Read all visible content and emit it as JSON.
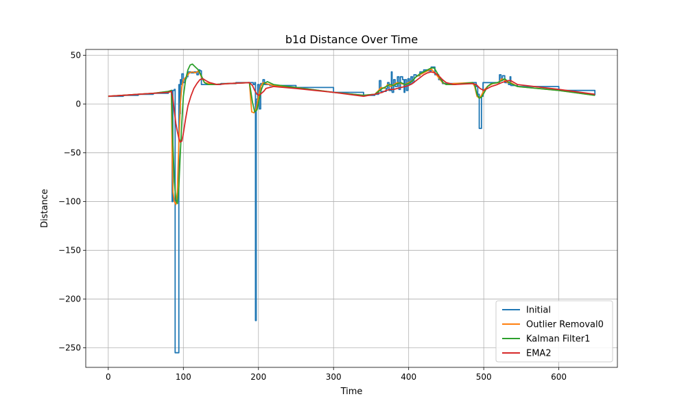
{
  "chart_data": {
    "type": "line",
    "title": "b1d Distance Over Time",
    "xlabel": "Time",
    "ylabel": "Distance",
    "xlim": [
      -30,
      678
    ],
    "ylim": [
      -270,
      56
    ],
    "xticks": [
      0,
      100,
      200,
      300,
      400,
      500,
      600
    ],
    "yticks": [
      50,
      0,
      -50,
      -100,
      -150,
      -200,
      -250
    ],
    "ytick_labels": [
      "50",
      "0",
      "−50",
      "−100",
      "−150",
      "−200",
      "−250"
    ],
    "grid": true,
    "legend_position": "bottom-right",
    "series": [
      {
        "name": "Initial",
        "color": "#1f77b4",
        "step": true,
        "points": [
          [
            0,
            8
          ],
          [
            20,
            9
          ],
          [
            40,
            10
          ],
          [
            60,
            11
          ],
          [
            80,
            13
          ],
          [
            84,
            14
          ],
          [
            85,
            -100
          ],
          [
            86,
            14
          ],
          [
            88,
            15
          ],
          [
            89,
            -255
          ],
          [
            93,
            -255
          ],
          [
            94,
            20
          ],
          [
            95,
            -10
          ],
          [
            96,
            25
          ],
          [
            97,
            20
          ],
          [
            98,
            31
          ],
          [
            100,
            22
          ],
          [
            102,
            26
          ],
          [
            104,
            28
          ],
          [
            106,
            33
          ],
          [
            110,
            32
          ],
          [
            114,
            33
          ],
          [
            118,
            30
          ],
          [
            120,
            35
          ],
          [
            122,
            34
          ],
          [
            124,
            20
          ],
          [
            130,
            20
          ],
          [
            150,
            21
          ],
          [
            170,
            22
          ],
          [
            188,
            22
          ],
          [
            190,
            22
          ],
          [
            193,
            20
          ],
          [
            195,
            22
          ],
          [
            196,
            -222
          ],
          [
            197,
            5
          ],
          [
            199,
            20
          ],
          [
            201,
            -5
          ],
          [
            203,
            21
          ],
          [
            206,
            25
          ],
          [
            208,
            20
          ],
          [
            215,
            19
          ],
          [
            250,
            17
          ],
          [
            300,
            12
          ],
          [
            340,
            9
          ],
          [
            355,
            10
          ],
          [
            360,
            14
          ],
          [
            361,
            24
          ],
          [
            363,
            13
          ],
          [
            370,
            16
          ],
          [
            372,
            22
          ],
          [
            374,
            14
          ],
          [
            377,
            33
          ],
          [
            378,
            12
          ],
          [
            380,
            25
          ],
          [
            382,
            18
          ],
          [
            385,
            28
          ],
          [
            387,
            15
          ],
          [
            389,
            28
          ],
          [
            392,
            25
          ],
          [
            394,
            12
          ],
          [
            395,
            25
          ],
          [
            397,
            14
          ],
          [
            399,
            26
          ],
          [
            401,
            20
          ],
          [
            403,
            28
          ],
          [
            405,
            22
          ],
          [
            407,
            30
          ],
          [
            410,
            29
          ],
          [
            415,
            33
          ],
          [
            420,
            35
          ],
          [
            425,
            34
          ],
          [
            430,
            38
          ],
          [
            435,
            30
          ],
          [
            440,
            25
          ],
          [
            445,
            21
          ],
          [
            460,
            21
          ],
          [
            485,
            22
          ],
          [
            490,
            18
          ],
          [
            492,
            10
          ],
          [
            494,
            -25
          ],
          [
            496,
            -25
          ],
          [
            497,
            8
          ],
          [
            499,
            22
          ],
          [
            505,
            22
          ],
          [
            512,
            22
          ],
          [
            520,
            22
          ],
          [
            521,
            30
          ],
          [
            523,
            24
          ],
          [
            525,
            29
          ],
          [
            528,
            22
          ],
          [
            533,
            20
          ],
          [
            535,
            28
          ],
          [
            536,
            19
          ],
          [
            545,
            18
          ],
          [
            600,
            14
          ],
          [
            648,
            9
          ]
        ]
      },
      {
        "name": "Outlier Removal0",
        "color": "#ff7f0e",
        "step": false,
        "points": [
          [
            0,
            8
          ],
          [
            20,
            9
          ],
          [
            40,
            10
          ],
          [
            60,
            11
          ],
          [
            80,
            13
          ],
          [
            84,
            14
          ],
          [
            85,
            -50
          ],
          [
            86,
            -90
          ],
          [
            88,
            -100
          ],
          [
            90,
            -103
          ],
          [
            92,
            -90
          ],
          [
            94,
            -40
          ],
          [
            96,
            0
          ],
          [
            98,
            18
          ],
          [
            100,
            25
          ],
          [
            104,
            28
          ],
          [
            108,
            32
          ],
          [
            112,
            33
          ],
          [
            116,
            32
          ],
          [
            120,
            34
          ],
          [
            124,
            28
          ],
          [
            128,
            22
          ],
          [
            140,
            20
          ],
          [
            160,
            21
          ],
          [
            188,
            22
          ],
          [
            191,
            -8
          ],
          [
            194,
            -9
          ],
          [
            197,
            -5
          ],
          [
            200,
            8
          ],
          [
            203,
            18
          ],
          [
            206,
            22
          ],
          [
            210,
            21
          ],
          [
            220,
            19
          ],
          [
            250,
            17
          ],
          [
            300,
            12
          ],
          [
            340,
            9
          ],
          [
            355,
            10
          ],
          [
            360,
            14
          ],
          [
            363,
            17
          ],
          [
            368,
            16
          ],
          [
            372,
            20
          ],
          [
            376,
            18
          ],
          [
            380,
            20
          ],
          [
            385,
            22
          ],
          [
            390,
            21
          ],
          [
            395,
            20
          ],
          [
            400,
            22
          ],
          [
            405,
            24
          ],
          [
            410,
            28
          ],
          [
            415,
            30
          ],
          [
            420,
            32
          ],
          [
            425,
            34
          ],
          [
            430,
            36
          ],
          [
            435,
            32
          ],
          [
            440,
            27
          ],
          [
            445,
            22
          ],
          [
            450,
            20
          ],
          [
            460,
            21
          ],
          [
            485,
            22
          ],
          [
            488,
            18
          ],
          [
            491,
            8
          ],
          [
            494,
            6
          ],
          [
            497,
            9
          ],
          [
            500,
            14
          ],
          [
            505,
            18
          ],
          [
            512,
            21
          ],
          [
            520,
            22
          ],
          [
            524,
            26
          ],
          [
            528,
            24
          ],
          [
            532,
            22
          ],
          [
            536,
            22
          ],
          [
            545,
            18
          ],
          [
            600,
            14
          ],
          [
            648,
            9
          ]
        ]
      },
      {
        "name": "Kalman Filter1",
        "color": "#2ca02c",
        "step": false,
        "points": [
          [
            0,
            8
          ],
          [
            20,
            9
          ],
          [
            40,
            10
          ],
          [
            60,
            11
          ],
          [
            80,
            13
          ],
          [
            84,
            14
          ],
          [
            86,
            -40
          ],
          [
            88,
            -80
          ],
          [
            90,
            -98
          ],
          [
            92,
            -102
          ],
          [
            94,
            -85
          ],
          [
            96,
            -50
          ],
          [
            98,
            -18
          ],
          [
            100,
            8
          ],
          [
            103,
            25
          ],
          [
            106,
            35
          ],
          [
            109,
            40
          ],
          [
            112,
            41
          ],
          [
            116,
            38
          ],
          [
            120,
            35
          ],
          [
            124,
            29
          ],
          [
            128,
            22
          ],
          [
            133,
            20
          ],
          [
            140,
            20
          ],
          [
            160,
            21
          ],
          [
            188,
            22
          ],
          [
            192,
            2
          ],
          [
            195,
            -8
          ],
          [
            198,
            -6
          ],
          [
            201,
            5
          ],
          [
            204,
            15
          ],
          [
            207,
            21
          ],
          [
            212,
            23
          ],
          [
            220,
            20
          ],
          [
            250,
            17
          ],
          [
            300,
            12
          ],
          [
            340,
            9
          ],
          [
            355,
            10
          ],
          [
            360,
            13
          ],
          [
            365,
            16
          ],
          [
            370,
            18
          ],
          [
            375,
            20
          ],
          [
            380,
            19
          ],
          [
            385,
            21
          ],
          [
            390,
            22
          ],
          [
            395,
            20
          ],
          [
            400,
            21
          ],
          [
            405,
            24
          ],
          [
            410,
            28
          ],
          [
            415,
            31
          ],
          [
            420,
            33
          ],
          [
            425,
            35
          ],
          [
            430,
            37
          ],
          [
            434,
            37
          ],
          [
            438,
            32
          ],
          [
            442,
            26
          ],
          [
            446,
            22
          ],
          [
            450,
            20
          ],
          [
            460,
            20
          ],
          [
            485,
            22
          ],
          [
            488,
            20
          ],
          [
            491,
            10
          ],
          [
            494,
            6
          ],
          [
            497,
            7
          ],
          [
            500,
            11
          ],
          [
            505,
            18
          ],
          [
            510,
            21
          ],
          [
            518,
            22
          ],
          [
            524,
            24
          ],
          [
            528,
            26
          ],
          [
            532,
            23
          ],
          [
            536,
            21
          ],
          [
            545,
            18
          ],
          [
            600,
            14
          ],
          [
            648,
            9
          ]
        ]
      },
      {
        "name": "EMA2",
        "color": "#d62728",
        "step": false,
        "points": [
          [
            0,
            8
          ],
          [
            20,
            9
          ],
          [
            40,
            10
          ],
          [
            60,
            11
          ],
          [
            80,
            12
          ],
          [
            84,
            13
          ],
          [
            86,
            6
          ],
          [
            88,
            -8
          ],
          [
            90,
            -20
          ],
          [
            92,
            -28
          ],
          [
            94,
            -35
          ],
          [
            96,
            -39
          ],
          [
            98,
            -38
          ],
          [
            100,
            -30
          ],
          [
            103,
            -15
          ],
          [
            106,
            -2
          ],
          [
            110,
            8
          ],
          [
            114,
            16
          ],
          [
            118,
            21
          ],
          [
            122,
            25
          ],
          [
            126,
            26
          ],
          [
            130,
            24
          ],
          [
            135,
            22
          ],
          [
            145,
            20
          ],
          [
            160,
            21
          ],
          [
            188,
            22
          ],
          [
            192,
            19
          ],
          [
            195,
            14
          ],
          [
            198,
            10
          ],
          [
            201,
            9
          ],
          [
            204,
            11
          ],
          [
            207,
            13
          ],
          [
            210,
            16
          ],
          [
            220,
            18
          ],
          [
            250,
            16
          ],
          [
            300,
            12
          ],
          [
            340,
            8
          ],
          [
            355,
            10
          ],
          [
            360,
            11
          ],
          [
            365,
            12
          ],
          [
            370,
            14
          ],
          [
            375,
            15
          ],
          [
            380,
            15
          ],
          [
            385,
            16
          ],
          [
            390,
            17
          ],
          [
            395,
            18
          ],
          [
            400,
            19
          ],
          [
            405,
            21
          ],
          [
            410,
            24
          ],
          [
            415,
            27
          ],
          [
            420,
            30
          ],
          [
            425,
            32
          ],
          [
            430,
            33
          ],
          [
            435,
            32
          ],
          [
            440,
            29
          ],
          [
            445,
            25
          ],
          [
            450,
            22
          ],
          [
            460,
            20
          ],
          [
            485,
            21
          ],
          [
            490,
            20
          ],
          [
            495,
            16
          ],
          [
            500,
            14
          ],
          [
            505,
            16
          ],
          [
            510,
            18
          ],
          [
            518,
            20
          ],
          [
            524,
            22
          ],
          [
            528,
            23
          ],
          [
            532,
            24
          ],
          [
            536,
            24
          ],
          [
            545,
            20
          ],
          [
            600,
            15
          ],
          [
            648,
            10
          ]
        ]
      }
    ]
  }
}
